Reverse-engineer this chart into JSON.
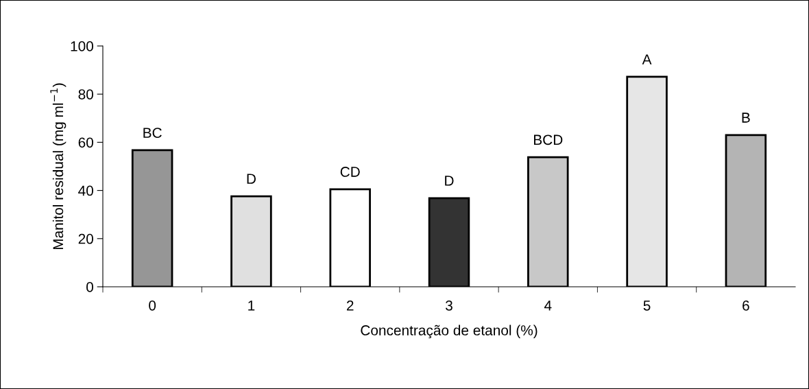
{
  "chart_data": {
    "type": "bar",
    "xlabel": "Concentração de etanol (%)",
    "ylabel": "Manitol residual (mg ml$^{−1}$)",
    "categories": [
      "0",
      "1",
      "2",
      "3",
      "4",
      "5",
      "6"
    ],
    "values": [
      56.7,
      37.6,
      40.5,
      36.8,
      53.8,
      87.2,
      63.0
    ],
    "colors": [
      "#969696",
      "#e0e0e0",
      "#ffffff",
      "#333333",
      "#c8c8c8",
      "#e6e6e6",
      "#b4b4b4"
    ],
    "ylim": [
      0,
      100
    ],
    "yticks": [
      0,
      20,
      40,
      60,
      80,
      100
    ],
    "grid": false,
    "legend": false,
    "annotations": [
      {
        "text": "BC",
        "x": "0",
        "y": 56.7
      },
      {
        "text": "D",
        "x": "1",
        "y": 37.6
      },
      {
        "text": "CD",
        "x": "2",
        "y": 40.5
      },
      {
        "text": "D",
        "x": "3",
        "y": 36.8
      },
      {
        "text": "BCD",
        "x": "4",
        "y": 53.8
      },
      {
        "text": "A",
        "x": "5",
        "y": 87.2
      },
      {
        "text": "B",
        "x": "6",
        "y": 63.0
      }
    ]
  }
}
